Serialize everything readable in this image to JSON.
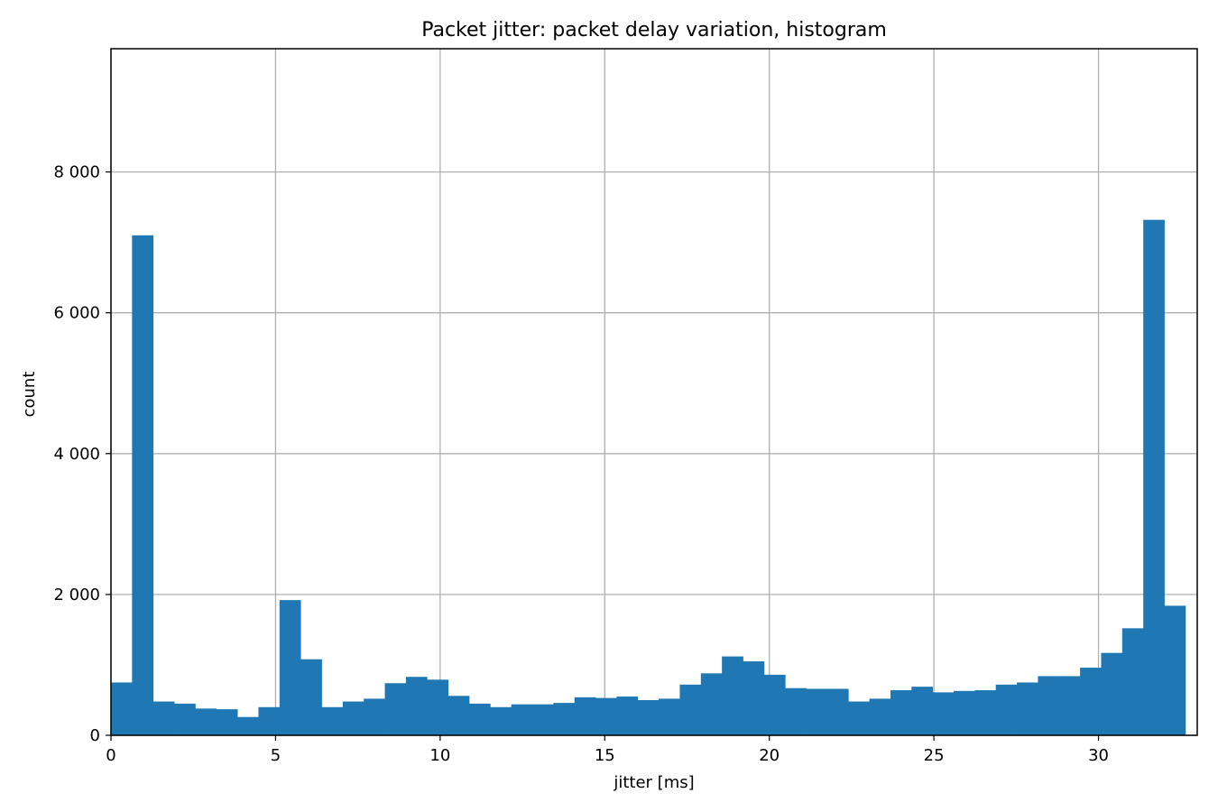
{
  "chart_data": {
    "type": "bar",
    "title": "Packet jitter: packet delay variation, histogram",
    "xlabel": "jitter [ms]",
    "ylabel": "count",
    "xlim": [
      0,
      33.0
    ],
    "ylim": [
      0,
      9750
    ],
    "grid": true,
    "bar_color": "#1f77b4",
    "xticks": [
      0,
      5,
      10,
      15,
      20,
      25,
      30
    ],
    "xtick_labels": [
      "0",
      "5",
      "10",
      "15",
      "20",
      "25",
      "30"
    ],
    "yticks": [
      0,
      2000,
      4000,
      6000,
      8000
    ],
    "ytick_labels": [
      "0",
      "2 000",
      "4 000",
      "6 000",
      "8 000"
    ],
    "bins": {
      "start": 0,
      "width": 0.64,
      "counts": [
        750,
        7100,
        480,
        450,
        380,
        370,
        260,
        400,
        1920,
        1080,
        400,
        480,
        520,
        740,
        830,
        790,
        560,
        450,
        400,
        440,
        440,
        460,
        540,
        530,
        550,
        500,
        520,
        720,
        880,
        1120,
        1050,
        860,
        670,
        660,
        660,
        480,
        520,
        640,
        690,
        610,
        630,
        640,
        720,
        750,
        840,
        840,
        960,
        1170,
        1520,
        7320,
        1840
      ]
    }
  }
}
